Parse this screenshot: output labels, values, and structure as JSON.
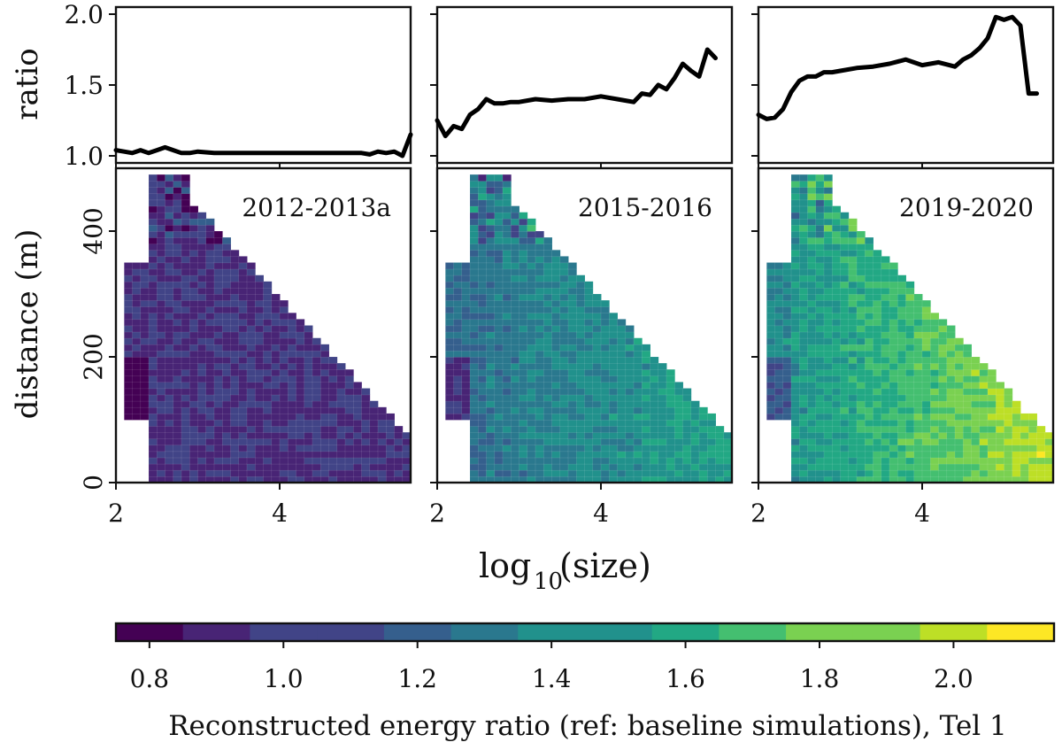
{
  "chart_data": {
    "type": "heatmap",
    "figure_description_free": true,
    "shared": {
      "xlabel_main": "log",
      "xlabel_sub": "10",
      "xlabel_tail": "(size)",
      "ylabel_top": "ratio",
      "ylabel_bottom": "distance (m)",
      "x_range": [
        2,
        5.6
      ],
      "x_ticks": [
        2,
        4
      ],
      "ratio_range": [
        0.95,
        2.05
      ],
      "ratio_ticks": [
        "1.0",
        "1.5",
        "2.0"
      ],
      "ratio_tick_values": [
        1.0,
        1.5,
        2.0
      ],
      "distance_range": [
        0,
        500
      ],
      "distance_ticks": [
        "0",
        "200",
        "400"
      ],
      "distance_tick_values": [
        0,
        200,
        400
      ]
    },
    "panels": [
      {
        "label": "2012-2013a",
        "ratio_curve": {
          "x": [
            2.0,
            2.1,
            2.2,
            2.3,
            2.4,
            2.5,
            2.6,
            2.7,
            2.8,
            2.9,
            3.0,
            3.2,
            3.4,
            3.6,
            3.8,
            4.0,
            4.2,
            4.4,
            4.6,
            4.8,
            5.0,
            5.1,
            5.2,
            5.3,
            5.4,
            5.5,
            5.6
          ],
          "y": [
            1.04,
            1.03,
            1.02,
            1.04,
            1.02,
            1.04,
            1.06,
            1.04,
            1.02,
            1.02,
            1.03,
            1.02,
            1.02,
            1.02,
            1.02,
            1.02,
            1.02,
            1.02,
            1.02,
            1.02,
            1.02,
            1.01,
            1.03,
            1.02,
            1.03,
            1.0,
            1.15
          ]
        },
        "heatmap_level": 0.2
      },
      {
        "label": "2015-2016",
        "ratio_curve": {
          "x": [
            2.0,
            2.1,
            2.2,
            2.3,
            2.4,
            2.5,
            2.6,
            2.7,
            2.8,
            2.9,
            3.0,
            3.2,
            3.4,
            3.6,
            3.8,
            4.0,
            4.2,
            4.4,
            4.5,
            4.6,
            4.7,
            4.8,
            4.9,
            5.0,
            5.1,
            5.2,
            5.3,
            5.4
          ],
          "y": [
            1.25,
            1.14,
            1.21,
            1.19,
            1.29,
            1.33,
            1.4,
            1.37,
            1.37,
            1.38,
            1.38,
            1.4,
            1.39,
            1.4,
            1.4,
            1.42,
            1.4,
            1.38,
            1.44,
            1.43,
            1.5,
            1.47,
            1.55,
            1.65,
            1.6,
            1.56,
            1.75,
            1.69
          ]
        },
        "heatmap_level": 0.55
      },
      {
        "label": "2019-2020",
        "ratio_curve": {
          "x": [
            2.0,
            2.1,
            2.2,
            2.3,
            2.4,
            2.5,
            2.6,
            2.7,
            2.8,
            2.9,
            3.0,
            3.2,
            3.4,
            3.6,
            3.8,
            4.0,
            4.2,
            4.4,
            4.5,
            4.6,
            4.7,
            4.8,
            4.9,
            5.0,
            5.1,
            5.2,
            5.3,
            5.4
          ],
          "y": [
            1.29,
            1.26,
            1.27,
            1.33,
            1.45,
            1.53,
            1.56,
            1.56,
            1.59,
            1.59,
            1.6,
            1.62,
            1.63,
            1.65,
            1.68,
            1.64,
            1.66,
            1.63,
            1.68,
            1.71,
            1.76,
            1.83,
            1.98,
            1.96,
            1.98,
            1.92,
            1.44,
            1.44
          ]
        },
        "heatmap_level": 0.7
      }
    ],
    "colorbar": {
      "label": "Reconstructed energy ratio (ref: baseline simulations), Tel 1",
      "min": 0.75,
      "max": 2.15,
      "step": 0.1,
      "ticks": [
        "0.8",
        "1.0",
        "1.2",
        "1.4",
        "1.6",
        "1.8",
        "2.0"
      ],
      "tick_values": [
        0.8,
        1.0,
        1.2,
        1.4,
        1.6,
        1.8,
        2.0
      ],
      "colors": [
        "#440154",
        "#482475",
        "#414487",
        "#355f8d",
        "#2a788e",
        "#21918c",
        "#22a884",
        "#44bf70",
        "#7ad151",
        "#bddf26",
        "#fde725"
      ]
    }
  }
}
